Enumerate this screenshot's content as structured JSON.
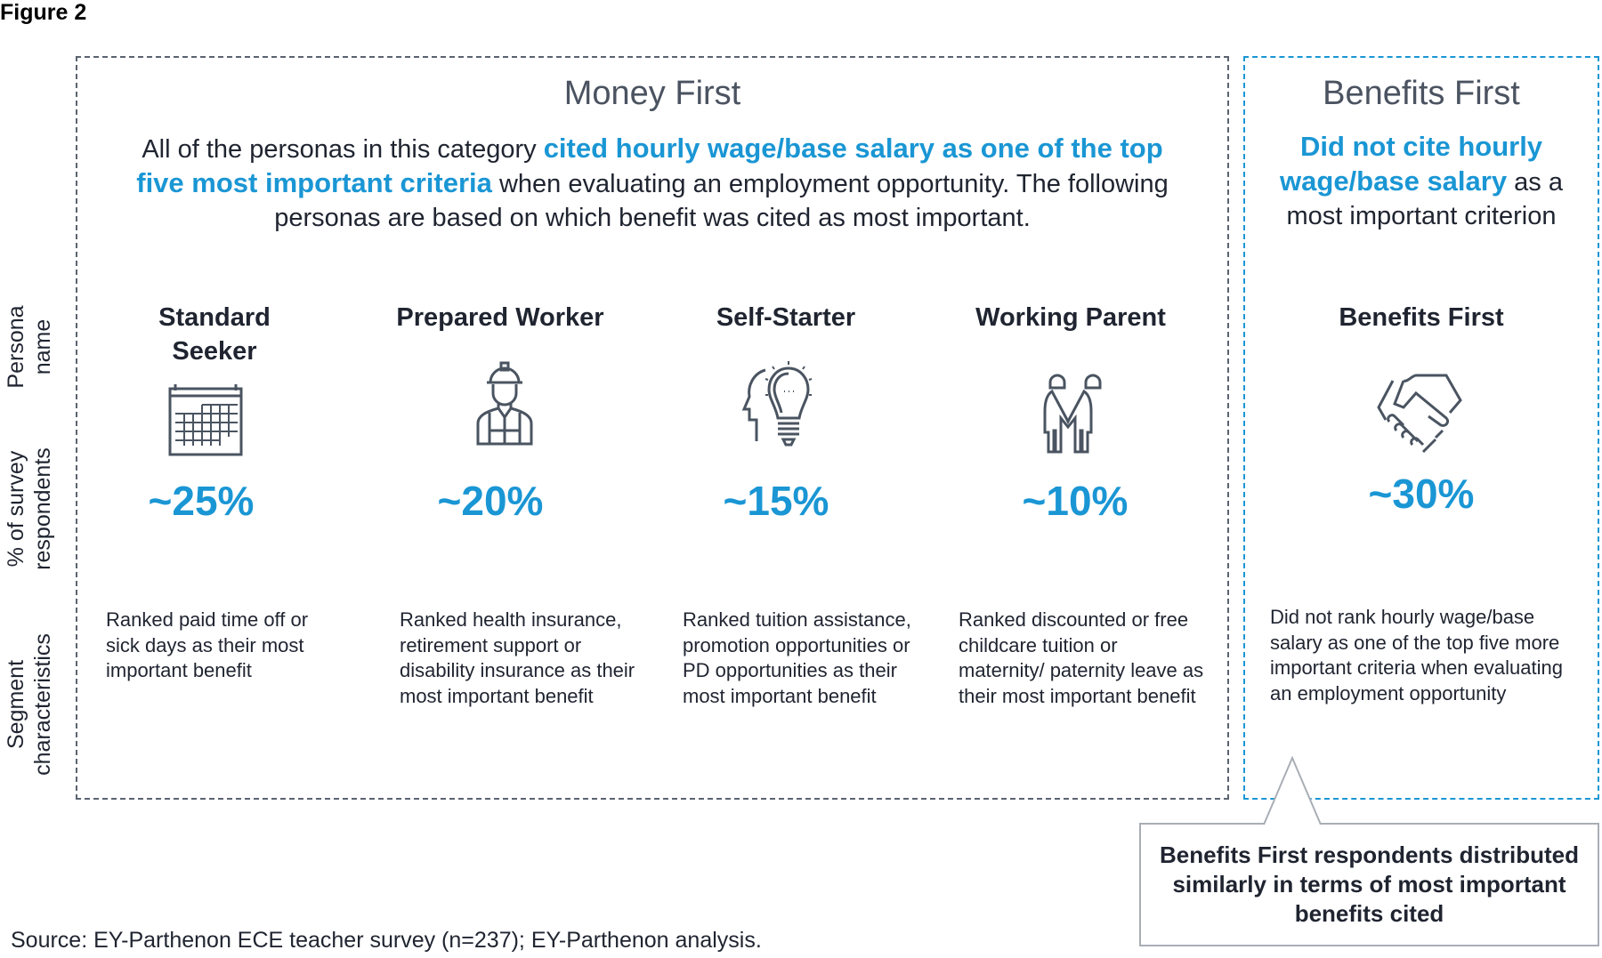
{
  "figure_label": "Figure 2",
  "colors": {
    "accent": "#1a96d4",
    "icon": "#4a5461",
    "money_border": "#5b6370"
  },
  "row_labels": [
    "Persona name",
    "% of survey respondents",
    "Segment characteristics"
  ],
  "money_first": {
    "title": "Money First",
    "intro_pre": "All of the personas in this category ",
    "intro_highlight": "cited hourly wage/base salary as one of the top five most important criteria",
    "intro_post": " when evaluating an employment opportunity. The following personas are based on which benefit was cited as most important.",
    "personas": [
      {
        "name": "Standard Seeker",
        "icon": "calendar-icon",
        "percent": "~25%",
        "characteristics": "Ranked paid time off or sick days as their most important benefit"
      },
      {
        "name": "Prepared Worker",
        "icon": "construction-worker-icon",
        "percent": "~20%",
        "characteristics": "Ranked health insurance, retirement support or disability insurance as their most important benefit"
      },
      {
        "name": "Self-Starter",
        "icon": "head-lightbulb-icon",
        "percent": "~15%",
        "characteristics": "Ranked tuition assistance, promotion opportunities or PD opportunities as their most important benefit"
      },
      {
        "name": "Working Parent",
        "icon": "two-people-holding-hands-icon",
        "percent": "~10%",
        "characteristics": "Ranked discounted or free childcare tuition or maternity/ paternity leave as their most important benefit"
      }
    ]
  },
  "benefits_first": {
    "title": "Benefits First",
    "intro_highlight": "Did not cite hourly wage/base salary",
    "intro_post": " as a most important criterion",
    "persona": {
      "name": "Benefits First",
      "icon": "handshake-icon",
      "percent": "~30%",
      "characteristics": "Did not rank hourly wage/base salary as one of the top five more important criteria when evaluating an employment opportunity"
    }
  },
  "callout": "Benefits First respondents distributed similarly in terms of most important benefits cited",
  "source": "Source: EY-Parthenon ECE teacher survey (n=237); EY-Parthenon analysis."
}
